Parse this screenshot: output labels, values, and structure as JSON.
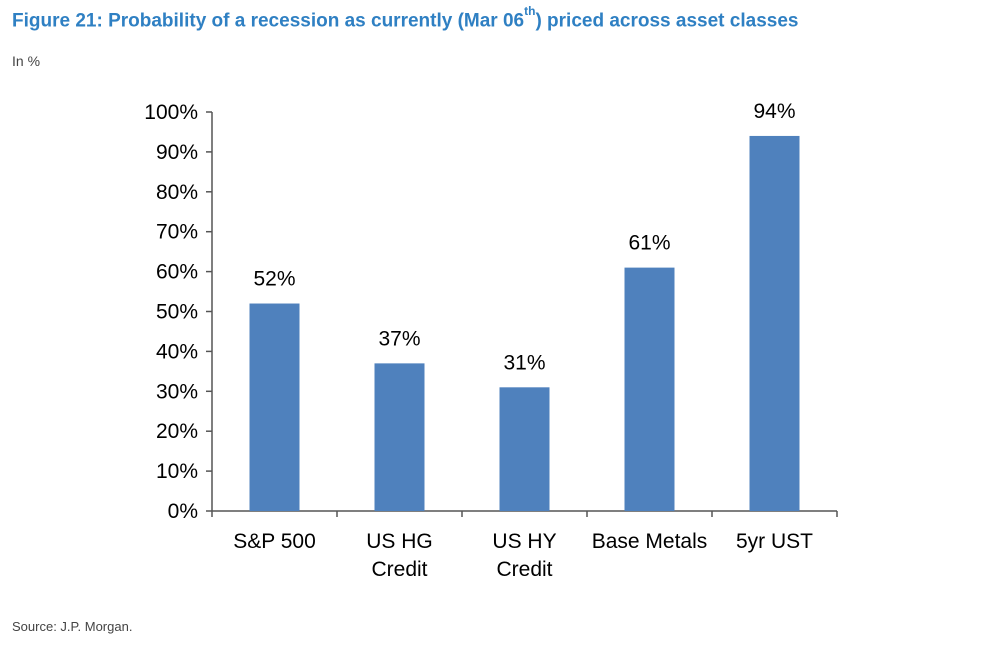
{
  "figure": {
    "title_before": "Figure 21: Probability of a recession as currently (Mar 06",
    "title_sup": "th",
    "title_after": ") priced across asset classes",
    "units": "In %",
    "source": "Source: J.P. Morgan."
  },
  "colors": {
    "title": "#2f80c3",
    "bar": "#4f81bd",
    "axis": "#555555"
  },
  "chart_data": {
    "type": "bar",
    "categories": [
      [
        "S&P 500"
      ],
      [
        "US HG",
        "Credit"
      ],
      [
        "US HY",
        "Credit"
      ],
      [
        "Base Metals"
      ],
      [
        "5yr UST"
      ]
    ],
    "values": [
      52,
      37,
      31,
      61,
      94
    ],
    "data_labels": [
      "52%",
      "37%",
      "31%",
      "61%",
      "94%"
    ],
    "ylim": [
      0,
      100
    ],
    "yticks": [
      0,
      10,
      20,
      30,
      40,
      50,
      60,
      70,
      80,
      90,
      100
    ],
    "ytick_labels": [
      "0%",
      "10%",
      "20%",
      "30%",
      "40%",
      "50%",
      "60%",
      "70%",
      "80%",
      "90%",
      "100%"
    ],
    "grid": false,
    "legend": "none"
  }
}
